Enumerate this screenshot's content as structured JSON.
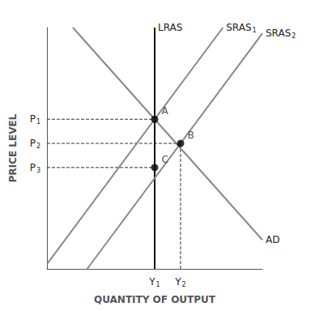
{
  "chart_data": {
    "type": "line",
    "xlabel": "QUANTITY OF OUTPUT",
    "ylabel": "PRICE LEVEL",
    "xlim": [
      0,
      10
    ],
    "ylim": [
      0,
      10
    ],
    "xticks": [
      {
        "value": 5.0,
        "label": "Y",
        "subscript": "1"
      },
      {
        "value": 6.2,
        "label": "Y",
        "subscript": "2"
      }
    ],
    "yticks": [
      {
        "value": 4.2,
        "label": "P",
        "subscript": "3"
      },
      {
        "value": 5.2,
        "label": "P",
        "subscript": "2"
      },
      {
        "value": 6.2,
        "label": "P",
        "subscript": "1"
      }
    ],
    "grid": false,
    "series": [
      {
        "name": "LRAS",
        "type": "line",
        "line_style": "solid",
        "color": "#111111",
        "x": [
          5.0,
          5.0
        ],
        "values": [
          0,
          10
        ]
      },
      {
        "name": "SRAS",
        "subscript": "1",
        "type": "line",
        "line_style": "solid",
        "color": "#888888",
        "x": [
          0,
          8.166666666666666
        ],
        "values": [
          0.2,
          10
        ]
      },
      {
        "name": "SRAS",
        "subscript": "2",
        "type": "line",
        "line_style": "solid",
        "color": "#888888",
        "x": [
          1.8666666666666667,
          10
        ],
        "values": [
          0,
          9.76
        ]
      },
      {
        "name": "AD",
        "type": "line",
        "line_style": "solid",
        "color": "#888888",
        "x": [
          1.2,
          10
        ],
        "values": [
          10,
          1.2
        ]
      },
      {
        "type": "line",
        "line_style": "dashed",
        "color": "#333333",
        "x": [
          0,
          5.0
        ],
        "values": [
          6.2,
          6.2
        ]
      },
      {
        "type": "line",
        "line_style": "dashed",
        "color": "#333333",
        "x": [
          0,
          6.2
        ],
        "values": [
          5.2,
          5.2
        ]
      },
      {
        "type": "line",
        "line_style": "dashed",
        "color": "#333333",
        "x": [
          0,
          5.0
        ],
        "values": [
          4.2,
          4.2
        ]
      },
      {
        "type": "line",
        "line_style": "dashed",
        "color": "#333333",
        "x": [
          6.2,
          6.2
        ],
        "values": [
          0,
          5.2
        ]
      },
      {
        "type": "scatter",
        "marker": "circle",
        "color": "#000000",
        "x": [
          5.0,
          6.2,
          5.0
        ],
        "values": [
          6.2,
          5.2,
          4.2
        ],
        "point_labels": [
          "A",
          "B",
          "C"
        ]
      }
    ]
  }
}
